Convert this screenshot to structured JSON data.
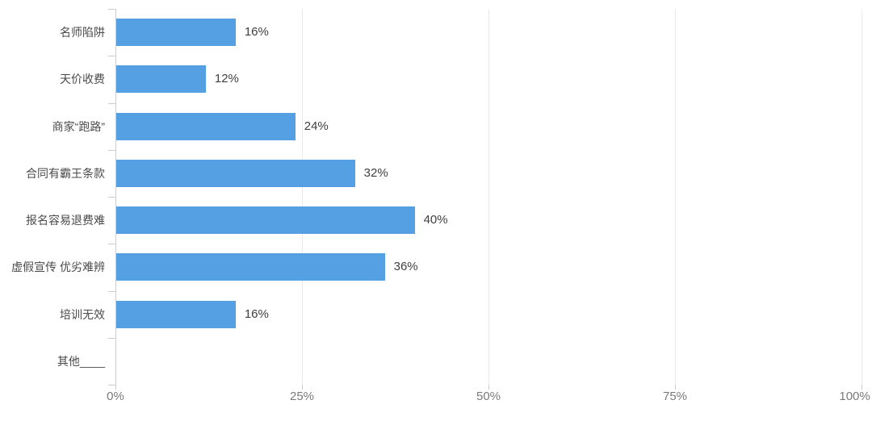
{
  "chart_data": {
    "type": "bar",
    "orientation": "horizontal",
    "title": "",
    "xlabel": "",
    "ylabel": "",
    "categories": [
      "名师陷阱",
      "天价收费",
      "商家“跑路”",
      "合同有霸王条款",
      "报名容易退费难",
      "虚假宣传 优劣难辨",
      "培训无效",
      "其他____"
    ],
    "values": [
      16,
      12,
      24,
      32,
      40,
      36,
      16,
      0
    ],
    "value_labels": [
      "16%",
      "12%",
      "24%",
      "32%",
      "40%",
      "36%",
      "16%",
      ""
    ],
    "x_axis": {
      "range": [
        0,
        100
      ],
      "tick_values": [
        0,
        25,
        50,
        75,
        100
      ],
      "tick_labels": [
        "0%",
        "25%",
        "50%",
        "75%",
        "100%"
      ]
    },
    "grid": true,
    "legend": false,
    "bar_color": "#55A0E2",
    "axis_color": "#c9ccd0",
    "gridline_color": "#ebebee",
    "category_label_color": "#4a4a4a",
    "value_label_color": "#404040",
    "tick_label_color": "#7a7a7a",
    "background_color": "#ffffff"
  }
}
